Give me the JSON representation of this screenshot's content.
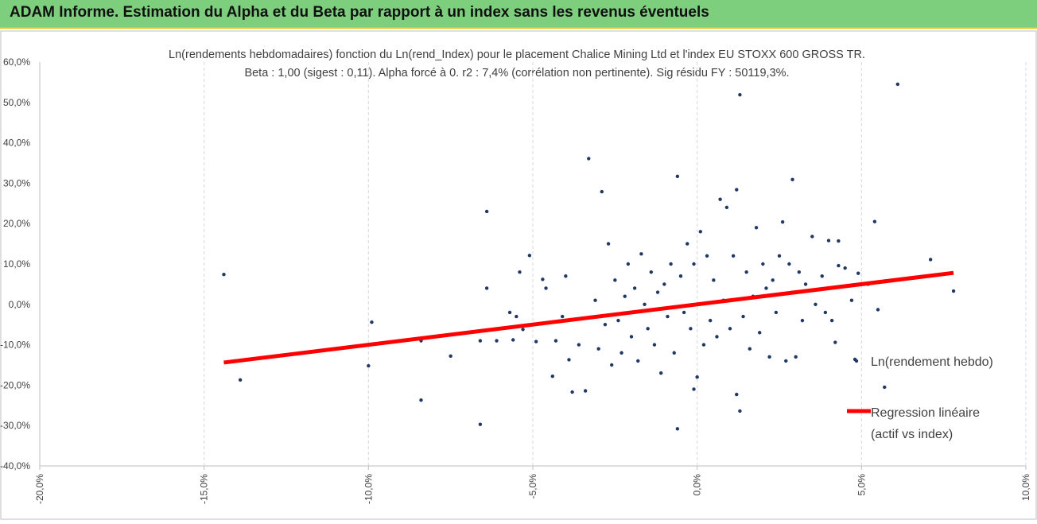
{
  "banner": {
    "title": "ADAM Informe. Estimation du Alpha et du Beta par rapport à un index sans les revenus éventuels",
    "background": "#7dcf7d",
    "accent": "#f0c000"
  },
  "chart_data": {
    "type": "scatter",
    "title": "Ln(rendements hebdomadaires) fonction du Ln(rend_Index) pour le placement Chalice Mining Ltd et l'index EU STOXX 600 GROSS TR.",
    "subtitle": "Beta : 1,00 (sigest : 0,11). Alpha forcé à 0. r2 : 7,4% (corrélation non pertinente). Sig résidu FY : 50119,3%.",
    "xlabel": "",
    "ylabel": "",
    "xlim": [
      -0.2,
      0.1
    ],
    "ylim": [
      -0.4,
      0.6
    ],
    "x_ticks": [
      -0.2,
      -0.15,
      -0.1,
      -0.05,
      0.0,
      0.05,
      0.1
    ],
    "x_tick_labels": [
      "-20,0%",
      "-15,0%",
      "-10,0%",
      "-5,0%",
      "0,0%",
      "5,0%",
      "10,0%"
    ],
    "y_ticks": [
      -0.4,
      -0.3,
      -0.2,
      -0.1,
      0.0,
      0.1,
      0.2,
      0.3,
      0.4,
      0.5,
      0.6
    ],
    "y_tick_labels": [
      "-40,0%",
      "-30,0%",
      "-20,0%",
      "-10,0%",
      "0,0%",
      "10,0%",
      "20,0%",
      "30,0%",
      "40,0%",
      "50,0%",
      "60,0%"
    ],
    "grid": {
      "vertical": true,
      "horizontal": false
    },
    "legend_position": "right",
    "series": [
      {
        "name": "Ln(rendement hebdo)",
        "kind": "scatter",
        "color": "#1f3864",
        "points": [
          [
            -0.144,
            0.074
          ],
          [
            -0.139,
            -0.187
          ],
          [
            -0.1,
            -0.152
          ],
          [
            -0.099,
            -0.044
          ],
          [
            -0.084,
            -0.237
          ],
          [
            -0.084,
            -0.09
          ],
          [
            -0.075,
            -0.128
          ],
          [
            -0.066,
            -0.297
          ],
          [
            -0.066,
            -0.09
          ],
          [
            -0.064,
            0.23
          ],
          [
            -0.064,
            0.04
          ],
          [
            -0.061,
            -0.09
          ],
          [
            -0.057,
            -0.02
          ],
          [
            -0.056,
            -0.088
          ],
          [
            -0.055,
            -0.03
          ],
          [
            -0.054,
            0.08
          ],
          [
            -0.053,
            -0.062
          ],
          [
            -0.051,
            0.121
          ],
          [
            -0.049,
            -0.092
          ],
          [
            -0.047,
            0.062
          ],
          [
            -0.046,
            0.04
          ],
          [
            -0.044,
            -0.178
          ],
          [
            -0.043,
            -0.09
          ],
          [
            -0.041,
            -0.03
          ],
          [
            -0.04,
            0.07
          ],
          [
            -0.039,
            -0.137
          ],
          [
            -0.038,
            -0.217
          ],
          [
            -0.036,
            -0.1
          ],
          [
            -0.034,
            -0.214
          ],
          [
            -0.033,
            0.361
          ],
          [
            -0.031,
            0.01
          ],
          [
            -0.03,
            -0.11
          ],
          [
            -0.029,
            0.279
          ],
          [
            -0.028,
            -0.05
          ],
          [
            -0.027,
            0.15
          ],
          [
            -0.026,
            -0.15
          ],
          [
            -0.025,
            0.06
          ],
          [
            -0.024,
            -0.04
          ],
          [
            -0.023,
            -0.12
          ],
          [
            -0.022,
            0.02
          ],
          [
            -0.021,
            0.1
          ],
          [
            -0.02,
            -0.08
          ],
          [
            -0.019,
            0.04
          ],
          [
            -0.018,
            -0.14
          ],
          [
            -0.017,
            0.125
          ],
          [
            -0.016,
            0.0
          ],
          [
            -0.015,
            -0.06
          ],
          [
            -0.014,
            0.08
          ],
          [
            -0.013,
            -0.1
          ],
          [
            -0.012,
            0.03
          ],
          [
            -0.011,
            -0.17
          ],
          [
            -0.01,
            0.05
          ],
          [
            -0.009,
            -0.03
          ],
          [
            -0.008,
            0.1
          ],
          [
            -0.007,
            -0.12
          ],
          [
            -0.006,
            0.317
          ],
          [
            -0.005,
            0.07
          ],
          [
            -0.004,
            -0.02
          ],
          [
            -0.003,
            0.15
          ],
          [
            -0.002,
            -0.06
          ],
          [
            -0.001,
            0.1
          ],
          [
            -0.001,
            -0.21
          ],
          [
            0.0,
            -0.18
          ],
          [
            0.001,
            0.18
          ],
          [
            0.002,
            -0.1
          ],
          [
            0.003,
            0.12
          ],
          [
            0.004,
            -0.04
          ],
          [
            0.005,
            0.06
          ],
          [
            0.006,
            -0.08
          ],
          [
            0.007,
            0.26
          ],
          [
            0.008,
            0.01
          ],
          [
            0.009,
            0.24
          ],
          [
            0.01,
            -0.06
          ],
          [
            0.011,
            0.12
          ],
          [
            0.012,
            0.284
          ],
          [
            0.012,
            -0.223
          ],
          [
            0.013,
            0.519
          ],
          [
            0.013,
            -0.264
          ],
          [
            -0.006,
            -0.308
          ],
          [
            0.014,
            -0.03
          ],
          [
            0.015,
            0.08
          ],
          [
            0.016,
            -0.11
          ],
          [
            0.017,
            0.02
          ],
          [
            0.018,
            0.19
          ],
          [
            0.019,
            -0.07
          ],
          [
            0.02,
            0.1
          ],
          [
            0.021,
            0.04
          ],
          [
            0.022,
            -0.13
          ],
          [
            0.023,
            0.06
          ],
          [
            0.024,
            -0.02
          ],
          [
            0.025,
            0.12
          ],
          [
            0.026,
            0.204
          ],
          [
            0.027,
            -0.14
          ],
          [
            0.028,
            0.1
          ],
          [
            0.029,
            0.03
          ],
          [
            0.029,
            0.309
          ],
          [
            0.03,
            -0.13
          ],
          [
            0.031,
            0.08
          ],
          [
            0.032,
            -0.04
          ],
          [
            0.033,
            0.05
          ],
          [
            0.035,
            0.168
          ],
          [
            0.036,
            0.0
          ],
          [
            0.038,
            0.07
          ],
          [
            0.039,
            -0.02
          ],
          [
            0.04,
            0.158
          ],
          [
            0.041,
            -0.04
          ],
          [
            0.042,
            -0.094
          ],
          [
            0.043,
            0.157
          ],
          [
            0.043,
            0.096
          ],
          [
            0.045,
            0.09
          ],
          [
            0.047,
            0.01
          ],
          [
            0.048,
            -0.136
          ],
          [
            0.049,
            0.077
          ],
          [
            0.052,
            0.05
          ],
          [
            0.054,
            0.205
          ],
          [
            0.055,
            -0.013
          ],
          [
            0.057,
            -0.205
          ],
          [
            0.061,
            0.545
          ],
          [
            0.071,
            0.111
          ],
          [
            0.078,
            0.033
          ]
        ]
      },
      {
        "name": "Regression linéaire (actif vs index)",
        "legend_lines": [
          "Regression linéaire",
          "(actif vs index)"
        ],
        "kind": "line",
        "color": "#ff0000",
        "points": [
          [
            -0.144,
            -0.144
          ],
          [
            0.078,
            0.078
          ]
        ]
      }
    ]
  }
}
